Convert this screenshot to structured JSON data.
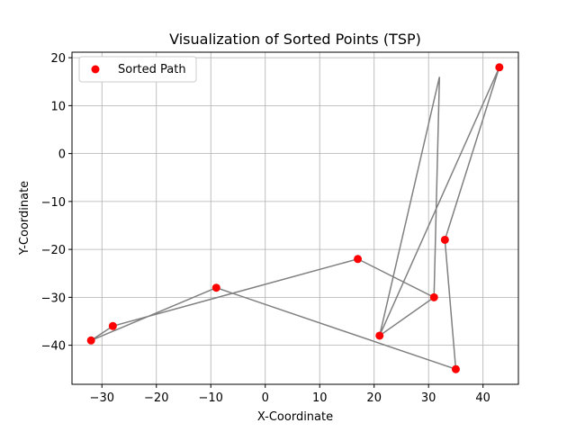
{
  "chart_data": {
    "type": "scatter",
    "title": "Visualization of Sorted Points (TSP)",
    "xlabel": "X-Coordinate",
    "ylabel": "Y-Coordinate",
    "xlim": [
      -35.5,
      46.5
    ],
    "ylim": [
      -48.15,
      21.15
    ],
    "xticks": [
      -30,
      -20,
      -10,
      0,
      10,
      20,
      30,
      40
    ],
    "yticks": [
      -40,
      -30,
      -20,
      -10,
      0,
      10,
      20
    ],
    "grid": true,
    "legend_position": "top-left",
    "path_color": "#808080",
    "marker_color": "#ff0000",
    "series": [
      {
        "name": "Sorted Path",
        "x": [
          -9,
          -32,
          -28,
          17,
          31,
          21,
          43,
          33,
          35,
          -9
        ],
        "y": [
          -28,
          -39,
          -36,
          -22,
          -30,
          -38,
          18,
          -18,
          -45,
          -28
        ]
      }
    ],
    "extra_line_segments": [
      {
        "x": [
          21,
          32,
          31
        ],
        "y": [
          -38,
          16,
          -30
        ]
      }
    ]
  }
}
